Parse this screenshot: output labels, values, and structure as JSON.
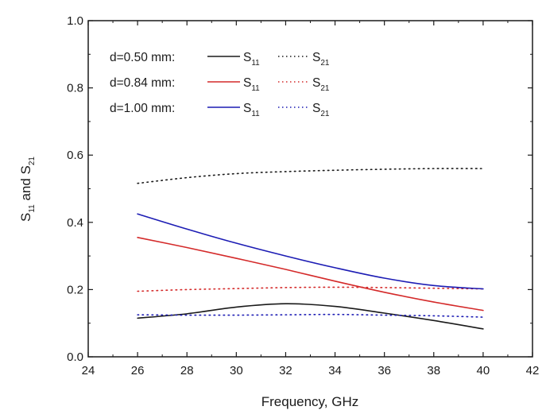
{
  "chart_data": {
    "type": "line",
    "xlabel": "Frequency, GHz",
    "ylabel_main": "S",
    "ylabel_sub1": "11",
    "ylabel_mid": " and S",
    "ylabel_sub2": "21",
    "xlim": [
      24,
      42
    ],
    "ylim": [
      0.0,
      1.0
    ],
    "x_ticks": [
      24,
      26,
      28,
      30,
      32,
      34,
      36,
      38,
      40,
      42
    ],
    "y_ticks": [
      0.0,
      0.2,
      0.4,
      0.6,
      0.8,
      1.0
    ],
    "y_tick_labels": [
      "0.0",
      "0.2",
      "0.4",
      "0.6",
      "0.8",
      "1.0"
    ],
    "grid": false,
    "legend_placement": "top-left",
    "legend": [
      {
        "label": "d=0.50 mm:",
        "color": "#1a1a1a"
      },
      {
        "label": "d=0.84 mm:",
        "color": "#d42a2a"
      },
      {
        "label": "d=1.00 mm:",
        "color": "#1c1cb4"
      }
    ],
    "legend_s11_main": "S",
    "legend_s11_sub": "11",
    "legend_s21_main": "S",
    "legend_s21_sub": "21",
    "x": [
      26,
      28,
      30,
      32,
      34,
      36,
      38,
      40
    ],
    "series": [
      {
        "color": "#1a1a1a",
        "dash": "solid",
        "values": [
          0.115,
          0.128,
          0.148,
          0.158,
          0.15,
          0.13,
          0.108,
          0.083
        ]
      },
      {
        "color": "#1a1a1a",
        "dash": "dotted",
        "values": [
          0.516,
          0.533,
          0.545,
          0.551,
          0.555,
          0.558,
          0.56,
          0.56
        ]
      },
      {
        "color": "#d42a2a",
        "dash": "solid",
        "values": [
          0.355,
          0.325,
          0.293,
          0.26,
          0.225,
          0.192,
          0.163,
          0.138
        ]
      },
      {
        "color": "#d42a2a",
        "dash": "dotted",
        "values": [
          0.195,
          0.2,
          0.203,
          0.206,
          0.207,
          0.206,
          0.204,
          0.202
        ]
      },
      {
        "color": "#1c1cb4",
        "dash": "solid",
        "values": [
          0.425,
          0.38,
          0.338,
          0.3,
          0.265,
          0.234,
          0.212,
          0.202
        ]
      },
      {
        "color": "#1c1cb4",
        "dash": "dotted",
        "values": [
          0.125,
          0.124,
          0.124,
          0.125,
          0.126,
          0.124,
          0.122,
          0.118
        ]
      }
    ]
  }
}
